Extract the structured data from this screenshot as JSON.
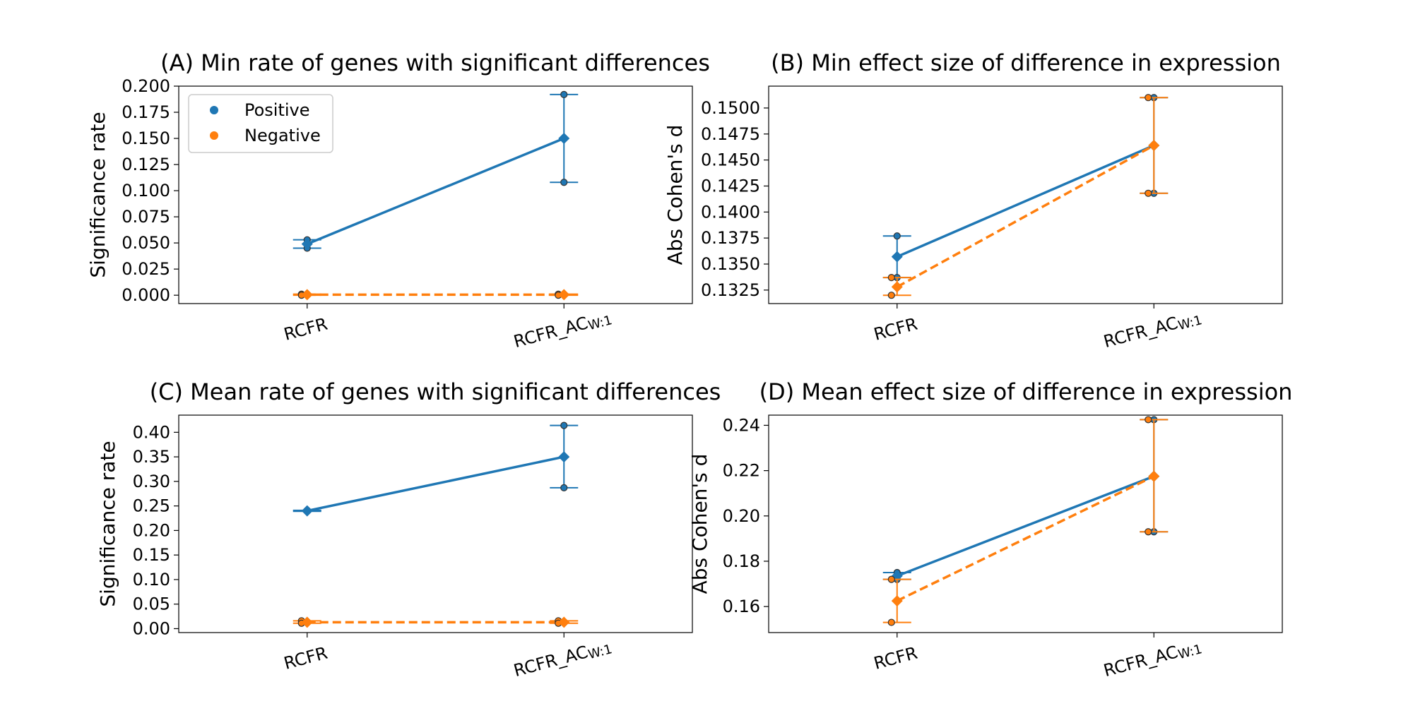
{
  "legend": {
    "position": "upper-left of panel A",
    "entries": [
      {
        "label": "Positive",
        "color": "#1f77b4"
      },
      {
        "label": "Negative",
        "color": "#ff7f0e"
      }
    ]
  },
  "chart_data": [
    {
      "type": "line",
      "title": "(A) Min rate of genes with significant differences",
      "ylabel": "Significance rate",
      "categories": [
        {
          "main": "RCFR",
          "sub": ""
        },
        {
          "main": "RCFR_AC",
          "sub": "W:1"
        }
      ],
      "ylim": [
        -0.008,
        0.2
      ],
      "yticks": [
        0.0,
        0.025,
        0.05,
        0.075,
        0.1,
        0.125,
        0.15,
        0.175,
        0.2
      ],
      "ytick_labels": [
        "0.000",
        "0.025",
        "0.050",
        "0.075",
        "0.100",
        "0.125",
        "0.150",
        "0.175",
        "0.200"
      ],
      "series": [
        {
          "name": "Positive",
          "color": "#1f77b4",
          "dash": false,
          "mean": [
            0.049,
            0.15
          ],
          "err_low": [
            0.045,
            0.108
          ],
          "err_high": [
            0.053,
            0.192
          ],
          "points": [
            [
              0.053,
              0.045
            ],
            [
              0.192,
              0.108
            ]
          ]
        },
        {
          "name": "Negative",
          "color": "#ff7f0e",
          "dash": true,
          "mean": [
            0.0005,
            0.0005
          ],
          "err_low": [
            0.0,
            0.0
          ],
          "err_high": [
            0.001,
            0.001
          ],
          "points": [
            [
              0.001,
              0.0
            ],
            [
              0.001,
              0.0
            ]
          ]
        }
      ]
    },
    {
      "type": "line",
      "title": "(B) Min effect size of difference in expression",
      "ylabel": "Abs Cohen's d",
      "categories": [
        {
          "main": "RCFR",
          "sub": ""
        },
        {
          "main": "RCFR_AC",
          "sub": "W:1"
        }
      ],
      "ylim": [
        0.1312,
        0.1521
      ],
      "yticks": [
        0.1325,
        0.135,
        0.1375,
        0.14,
        0.1425,
        0.145,
        0.1475,
        0.15
      ],
      "ytick_labels": [
        "0.1325",
        "0.1350",
        "0.1375",
        "0.1400",
        "0.1425",
        "0.1450",
        "0.1475",
        "0.1500"
      ],
      "series": [
        {
          "name": "Positive",
          "color": "#1f77b4",
          "dash": false,
          "mean": [
            0.1357,
            0.1464
          ],
          "err_low": [
            0.1337,
            0.1418
          ],
          "err_high": [
            0.1377,
            0.151
          ],
          "points": [
            [
              0.1377,
              0.1337
            ],
            [
              0.151,
              0.1418
            ]
          ]
        },
        {
          "name": "Negative",
          "color": "#ff7f0e",
          "dash": true,
          "mean": [
            0.1328,
            0.1464
          ],
          "err_low": [
            0.132,
            0.1418
          ],
          "err_high": [
            0.1337,
            0.151
          ],
          "points": [
            [
              0.1337,
              0.132
            ],
            [
              0.151,
              0.1418
            ]
          ]
        }
      ]
    },
    {
      "type": "line",
      "title": "(C) Mean rate of genes with significant differences",
      "ylabel": "Significance rate",
      "categories": [
        {
          "main": "RCFR",
          "sub": ""
        },
        {
          "main": "RCFR_AC",
          "sub": "W:1"
        }
      ],
      "ylim": [
        -0.008,
        0.435
      ],
      "yticks": [
        0.0,
        0.05,
        0.1,
        0.15,
        0.2,
        0.25,
        0.3,
        0.35,
        0.4
      ],
      "ytick_labels": [
        "0.00",
        "0.05",
        "0.10",
        "0.15",
        "0.20",
        "0.25",
        "0.30",
        "0.35",
        "0.40"
      ],
      "series": [
        {
          "name": "Positive",
          "color": "#1f77b4",
          "dash": false,
          "mean": [
            0.24,
            0.35
          ],
          "err_low": [
            0.239,
            0.287
          ],
          "err_high": [
            0.241,
            0.414
          ],
          "points": [
            [
              0.241,
              0.239
            ],
            [
              0.414,
              0.287
            ]
          ]
        },
        {
          "name": "Negative",
          "color": "#ff7f0e",
          "dash": true,
          "mean": [
            0.013,
            0.013
          ],
          "err_low": [
            0.011,
            0.011
          ],
          "err_high": [
            0.016,
            0.016
          ],
          "points": [
            [
              0.016,
              0.011
            ],
            [
              0.016,
              0.011
            ]
          ]
        }
      ]
    },
    {
      "type": "line",
      "title": "(D) Mean effect size of difference in expression",
      "ylabel": "Abs Cohen's d",
      "categories": [
        {
          "main": "RCFR",
          "sub": ""
        },
        {
          "main": "RCFR_AC",
          "sub": "W:1"
        }
      ],
      "ylim": [
        0.1485,
        0.2445
      ],
      "yticks": [
        0.16,
        0.18,
        0.2,
        0.22,
        0.24
      ],
      "ytick_labels": [
        "0.16",
        "0.18",
        "0.20",
        "0.22",
        "0.24"
      ],
      "series": [
        {
          "name": "Positive",
          "color": "#1f77b4",
          "dash": false,
          "mean": [
            0.1735,
            0.2175
          ],
          "err_low": [
            0.172,
            0.193
          ],
          "err_high": [
            0.175,
            0.2425
          ],
          "points": [
            [
              0.175,
              0.172
            ],
            [
              0.2425,
              0.193
            ]
          ]
        },
        {
          "name": "Negative",
          "color": "#ff7f0e",
          "dash": true,
          "mean": [
            0.1625,
            0.2175
          ],
          "err_low": [
            0.153,
            0.193
          ],
          "err_high": [
            0.172,
            0.2425
          ],
          "points": [
            [
              0.172,
              0.153
            ],
            [
              0.2425,
              0.193
            ]
          ]
        }
      ]
    }
  ]
}
